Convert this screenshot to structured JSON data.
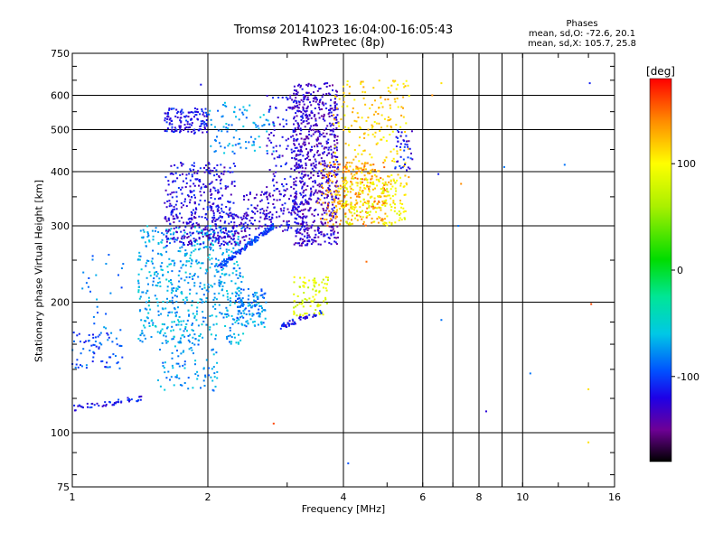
{
  "chart_data": {
    "type": "scatter",
    "title_line1": "Tromsø 20141023 16:04:00-16:05:43",
    "title_line2": "RwPretec (8p)",
    "xlabel": "Frequency [MHz]",
    "ylabel": "Stationary phase Virtual Height [km]",
    "x_scale": "log",
    "y_scale": "log",
    "xlim": [
      1,
      16
    ],
    "ylim": [
      75,
      750
    ],
    "x_ticks": [
      1,
      2,
      4,
      6,
      8,
      10,
      16
    ],
    "x_gridlines": [
      2,
      4,
      6,
      7,
      8,
      9,
      10
    ],
    "y_ticks": [
      75,
      100,
      200,
      300,
      400,
      500,
      600,
      750
    ],
    "y_gridlines": [
      100,
      200,
      300,
      400,
      500,
      600
    ],
    "grid": true,
    "phase_stats": {
      "heading": "Phases",
      "line_o": "mean, sd,O: -72.6, 20.1",
      "line_x": "mean, sd,X: 105.7, 25.8"
    },
    "colorbar": {
      "unit": "[deg]",
      "range": [
        -180,
        180
      ],
      "ticks": [
        100,
        0,
        -100
      ]
    },
    "clusters": [
      {
        "f": [
          1.0,
          1.45
        ],
        "h": [
          114,
          120
        ],
        "phase": -115,
        "n": 50,
        "shape": "trace"
      },
      {
        "f": [
          1.0,
          1.3
        ],
        "h": [
          140,
          172
        ],
        "phase": -95,
        "n": 70,
        "shape": "cloud"
      },
      {
        "f": [
          1.05,
          1.3
        ],
        "h": [
          170,
          260
        ],
        "phase": -85,
        "n": 25,
        "shape": "cloud"
      },
      {
        "f": [
          1.4,
          2.4
        ],
        "h": [
          160,
          300
        ],
        "phase": -70,
        "n": 600,
        "shape": "cloud"
      },
      {
        "f": [
          1.55,
          2.1
        ],
        "h": [
          125,
          160
        ],
        "phase": -75,
        "n": 80,
        "shape": "cloud"
      },
      {
        "f": [
          2.3,
          2.7
        ],
        "h": [
          175,
          215
        ],
        "phase": -80,
        "n": 120,
        "shape": "cloud"
      },
      {
        "f": [
          1.6,
          2.5
        ],
        "h": [
          270,
          320
        ],
        "phase": -125,
        "n": 260,
        "shape": "cloud"
      },
      {
        "f": [
          1.6,
          2.3
        ],
        "h": [
          320,
          420
        ],
        "phase": -120,
        "n": 220,
        "shape": "cloud"
      },
      {
        "f": [
          1.6,
          2.0
        ],
        "h": [
          490,
          560
        ],
        "phase": -115,
        "n": 130,
        "shape": "cloud"
      },
      {
        "f": [
          2.4,
          3.3
        ],
        "h": [
          290,
          360
        ],
        "phase": -125,
        "n": 160,
        "shape": "cloud"
      },
      {
        "f": [
          2.7,
          3.3
        ],
        "h": [
          330,
          600
        ],
        "phase": -120,
        "n": 150,
        "shape": "cloud"
      },
      {
        "f": [
          3.1,
          3.9
        ],
        "h": [
          270,
          640
        ],
        "phase": -130,
        "n": 700,
        "shape": "cloud"
      },
      {
        "f": [
          2.1,
          2.8
        ],
        "h": [
          240,
          300
        ],
        "phase": -100,
        "n": 160,
        "shape": "trace"
      },
      {
        "f": [
          3.8,
          5.6
        ],
        "h": [
          330,
          650
        ],
        "phase": 115,
        "n": 260,
        "shape": "cloud"
      },
      {
        "f": [
          3.5,
          5.0
        ],
        "h": [
          300,
          420
        ],
        "phase": 135,
        "n": 220,
        "shape": "cloud"
      },
      {
        "f": [
          4.0,
          5.5
        ],
        "h": [
          300,
          390
        ],
        "phase": 95,
        "n": 150,
        "shape": "cloud"
      },
      {
        "f": [
          3.1,
          3.7
        ],
        "h": [
          185,
          230
        ],
        "phase": 85,
        "n": 90,
        "shape": "cloud"
      },
      {
        "f": [
          2.9,
          3.6
        ],
        "h": [
          176,
          190
        ],
        "phase": -115,
        "n": 50,
        "shape": "trace"
      },
      {
        "f": [
          5.2,
          5.7
        ],
        "h": [
          400,
          500
        ],
        "phase": -115,
        "n": 40,
        "shape": "cloud"
      },
      {
        "f": [
          2.0,
          2.8
        ],
        "h": [
          440,
          580
        ],
        "phase": -75,
        "n": 90,
        "shape": "cloud"
      }
    ],
    "scattered_points": [
      {
        "f": 6.6,
        "h": 640,
        "phase": 110
      },
      {
        "f": 6.3,
        "h": 600,
        "phase": 140
      },
      {
        "f": 6.5,
        "h": 395,
        "phase": -110
      },
      {
        "f": 7.3,
        "h": 375,
        "phase": 140
      },
      {
        "f": 9.1,
        "h": 410,
        "phase": -85
      },
      {
        "f": 12.4,
        "h": 415,
        "phase": -85
      },
      {
        "f": 14.1,
        "h": 640,
        "phase": -110
      },
      {
        "f": 4.5,
        "h": 248,
        "phase": 150
      },
      {
        "f": 6.6,
        "h": 182,
        "phase": -85
      },
      {
        "f": 8.3,
        "h": 112,
        "phase": -125
      },
      {
        "f": 10.4,
        "h": 137,
        "phase": -85
      },
      {
        "f": 14.2,
        "h": 198,
        "phase": 160
      },
      {
        "f": 14.0,
        "h": 126,
        "phase": 110
      },
      {
        "f": 14.0,
        "h": 95,
        "phase": 110
      },
      {
        "f": 4.1,
        "h": 85,
        "phase": -95
      },
      {
        "f": 2.8,
        "h": 105,
        "phase": 160
      },
      {
        "f": 7.2,
        "h": 300,
        "phase": -85
      },
      {
        "f": 1.93,
        "h": 635,
        "phase": -115
      }
    ]
  }
}
